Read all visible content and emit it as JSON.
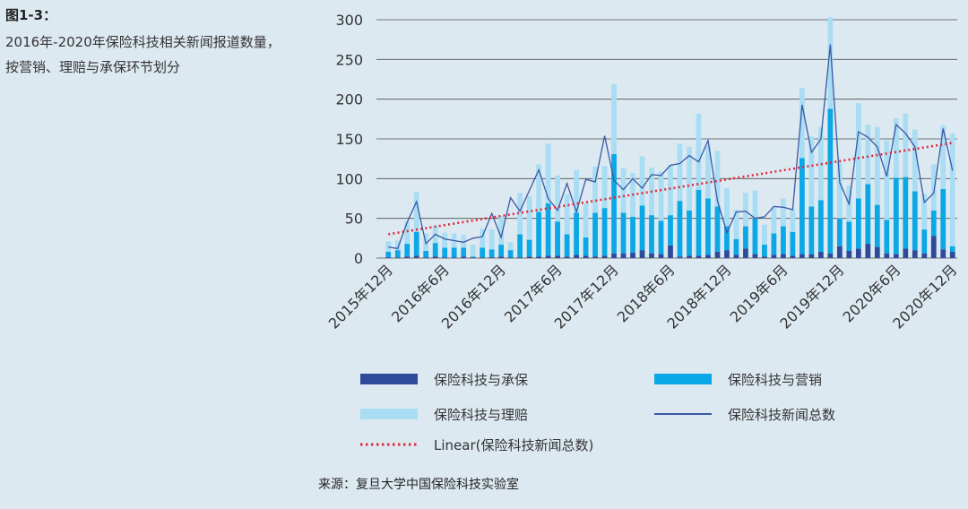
{
  "figure": {
    "label": "图1-3：",
    "caption": "2016年-2020年保险科技相关新闻报道数量，按营销、理赔与承保环节划分",
    "source": "来源：复旦大学中国保险科技实验室"
  },
  "colors": {
    "background": "#dde9f1",
    "underwriting": "#2e4a9a",
    "marketing": "#0aa8e6",
    "claims": "#a9ddf3",
    "total": "#3a57a6",
    "trend": "#e0283c"
  },
  "chart_data": {
    "type": "bar",
    "stacked": true,
    "title": "",
    "ylim": [
      0,
      300
    ],
    "yticks": [
      0,
      50,
      100,
      150,
      200,
      250,
      300
    ],
    "x_tick_labels": [
      "2015年12月",
      "2016年6月",
      "2016年12月",
      "2017年6月",
      "2017年12月",
      "2018年6月",
      "2018年12月",
      "2019年6月",
      "2019年12月",
      "2020年6月",
      "2020年12月"
    ],
    "x_tick_positions": [
      0,
      6,
      12,
      18,
      24,
      30,
      36,
      42,
      48,
      54,
      60
    ],
    "n_months": 61,
    "series": [
      {
        "name": "保险科技与承保",
        "type": "bar",
        "values": [
          1,
          1,
          2,
          3,
          1,
          2,
          1,
          1,
          2,
          1,
          1,
          1,
          2,
          1,
          1,
          2,
          2,
          3,
          3,
          2,
          4,
          3,
          2,
          3,
          6,
          6,
          7,
          10,
          6,
          5,
          16,
          2,
          3,
          3,
          4,
          8,
          10,
          4,
          12,
          5,
          2,
          4,
          5,
          3,
          5,
          5,
          8,
          6,
          15,
          9,
          12,
          18,
          14,
          6,
          5,
          12,
          10,
          6,
          28,
          11,
          8
        ],
        "color_key": "underwriting"
      },
      {
        "name": "保险科技与营销",
        "type": "bar",
        "values": [
          7,
          9,
          16,
          30,
          8,
          17,
          12,
          12,
          11,
          1,
          12,
          10,
          15,
          9,
          29,
          21,
          56,
          66,
          43,
          28,
          53,
          23,
          55,
          60,
          125,
          51,
          45,
          56,
          48,
          42,
          38,
          70,
          57,
          83,
          71,
          57,
          30,
          20,
          28,
          45,
          15,
          27,
          35,
          30,
          121,
          60,
          65,
          182,
          35,
          37,
          63,
          75,
          53,
          42,
          96,
          90,
          74,
          30,
          32,
          76,
          7
        ],
        "color_key": "marketing"
      },
      {
        "name": "保险科技与理赔",
        "type": "bar",
        "values": [
          13,
          12,
          28,
          50,
          22,
          22,
          19,
          18,
          16,
          15,
          24,
          25,
          36,
          10,
          52,
          55,
          60,
          75,
          58,
          50,
          54,
          43,
          58,
          53,
          88,
          56,
          55,
          62,
          60,
          62,
          63,
          72,
          80,
          96,
          66,
          70,
          48,
          37,
          42,
          35,
          25,
          33,
          35,
          28,
          88,
          88,
          92,
          115,
          70,
          45,
          120,
          75,
          98,
          100,
          75,
          80,
          78,
          45,
          58,
          80,
          142
        ],
        "color_key": "claims"
      },
      {
        "name": "保险科技新闻总数",
        "type": "line",
        "values": [
          14,
          12,
          45,
          71,
          18,
          30,
          24,
          22,
          20,
          25,
          27,
          56,
          26,
          76,
          59,
          85,
          111,
          75,
          60,
          94,
          58,
          99,
          96,
          154,
          98,
          86,
          100,
          88,
          105,
          104,
          117,
          119,
          129,
          121,
          148,
          72,
          32,
          58,
          59,
          50,
          52,
          65,
          64,
          61,
          193,
          133,
          150,
          269,
          95,
          68,
          159,
          152,
          140,
          103,
          168,
          157,
          140,
          70,
          82,
          163,
          110
        ],
        "color_key": "total"
      },
      {
        "name": "Linear(保险科技新闻总数)",
        "type": "trendline",
        "start": 30,
        "end": 145,
        "color_key": "trend"
      }
    ],
    "legend": [
      {
        "label": "保险科技与承保",
        "kind": "bar",
        "color_key": "underwriting"
      },
      {
        "label": "保险科技与营销",
        "kind": "bar",
        "color_key": "marketing"
      },
      {
        "label": "保险科技与理赔",
        "kind": "bar",
        "color_key": "claims"
      },
      {
        "label": "保险科技新闻总数",
        "kind": "line",
        "color_key": "total"
      },
      {
        "label": "Linear(保险科技新闻总数)",
        "kind": "dotted",
        "color_key": "trend"
      }
    ],
    "legend_position": "bottom"
  }
}
